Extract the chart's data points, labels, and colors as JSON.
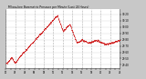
{
  "title": "Milwaukee Barometric Pressure per Minute (Last 24 Hours)",
  "background_color": "#c8c8c8",
  "plot_bg_color": "#ffffff",
  "grid_color": "#999999",
  "line_color": "#cc0000",
  "y_min": 29.35,
  "y_max": 30.28,
  "y_ticks": [
    29.4,
    29.5,
    29.6,
    29.7,
    29.8,
    29.9,
    30.0,
    30.1,
    30.2
  ],
  "n_points": 1440,
  "seed": 42,
  "figsize": [
    1.6,
    0.87
  ],
  "dpi": 100
}
